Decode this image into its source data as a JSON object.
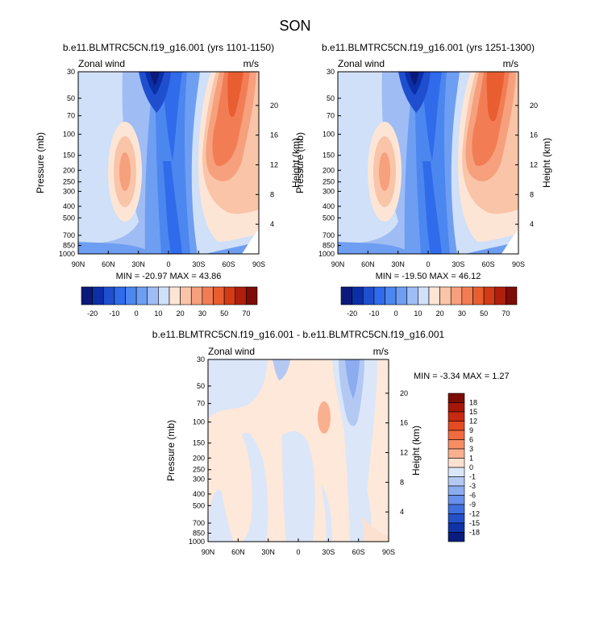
{
  "page_title": "SON",
  "chart_data": [
    {
      "type": "contour",
      "title": "b.e11.BLMTRC5CN.f19_g16.001 (yrs 1101-1150)",
      "left_label": "Zonal wind",
      "right_label": "m/s",
      "ylabel": "Pressure (mb)",
      "ylabel_right": "Height (km)",
      "x_ticks": [
        "90N",
        "60N",
        "30N",
        "0",
        "30S",
        "60S",
        "90S"
      ],
      "y_ticks": [
        "30",
        "50",
        "70",
        "100",
        "150",
        "200",
        "250",
        "300",
        "400",
        "500",
        "700",
        "850",
        "1000"
      ],
      "height_ticks": [
        "20",
        "16",
        "12",
        "8",
        "4"
      ],
      "min_max": "MIN = -20.97  MAX =  43.86",
      "colorbar_labels": [
        "-20",
        "-10",
        "0",
        "10",
        "20",
        "30",
        "50",
        "70"
      ],
      "colorbar_colors": [
        "#0b1a7a",
        "#0b2fa8",
        "#1f4fcf",
        "#2f6bea",
        "#4c86ef",
        "#6e9ef2",
        "#9fbcf4",
        "#cfe0f8",
        "#fde5d6",
        "#f9c4a7",
        "#f6a07d",
        "#f27d55",
        "#e85e31",
        "#d23b16",
        "#b01f0c",
        "#7d0c06"
      ],
      "min_value": -20.97,
      "max_value": 43.86
    },
    {
      "type": "contour",
      "title": "b.e11.BLMTRC5CN.f19_g16.001 (yrs 1251-1300)",
      "left_label": "Zonal wind",
      "right_label": "m/s",
      "ylabel": "Pressure (mb)",
      "ylabel_right": "Height (km)",
      "x_ticks": [
        "90N",
        "60N",
        "30N",
        "0",
        "30S",
        "60S",
        "90S"
      ],
      "y_ticks": [
        "30",
        "50",
        "70",
        "100",
        "150",
        "200",
        "250",
        "300",
        "400",
        "500",
        "700",
        "850",
        "1000"
      ],
      "height_ticks": [
        "20",
        "16",
        "12",
        "8",
        "4"
      ],
      "min_max": "MIN = -19.50  MAX =  46.12",
      "colorbar_labels": [
        "-20",
        "-10",
        "0",
        "10",
        "20",
        "30",
        "50",
        "70"
      ],
      "colorbar_colors": [
        "#0b1a7a",
        "#0b2fa8",
        "#1f4fcf",
        "#2f6bea",
        "#4c86ef",
        "#6e9ef2",
        "#9fbcf4",
        "#cfe0f8",
        "#fde5d6",
        "#f9c4a7",
        "#f6a07d",
        "#f27d55",
        "#e85e31",
        "#d23b16",
        "#b01f0c",
        "#7d0c06"
      ],
      "min_value": -19.5,
      "max_value": 46.12
    },
    {
      "type": "contour",
      "title": "b.e11.BLMTRC5CN.f19_g16.001 - b.e11.BLMTRC5CN.f19_g16.001",
      "left_label": "Zonal wind",
      "right_label": "m/s",
      "ylabel": "Pressure (mb)",
      "ylabel_right": "Height (km)",
      "x_ticks": [
        "90N",
        "60N",
        "30N",
        "0",
        "30S",
        "60S",
        "90S"
      ],
      "y_ticks": [
        "30",
        "50",
        "70",
        "100",
        "150",
        "200",
        "250",
        "300",
        "400",
        "500",
        "700",
        "850",
        "1000"
      ],
      "height_ticks": [
        "20",
        "16",
        "12",
        "8",
        "4"
      ],
      "min_max": "MIN = -3.34  MAX =  1.27",
      "colorbar_labels": [
        "18",
        "15",
        "12",
        "9",
        "6",
        "3",
        "1",
        "0",
        "-1",
        "-3",
        "-6",
        "-9",
        "-12",
        "-15",
        "-18"
      ],
      "colorbar_colors": [
        "#7d0c06",
        "#a5170a",
        "#c72a10",
        "#e54a22",
        "#f26a3f",
        "#f68d63",
        "#f9b08f",
        "#fde1d0",
        "#dbe6f8",
        "#b3c9f3",
        "#8cacf0",
        "#6790ea",
        "#3f6fde",
        "#2450c8",
        "#0f34a8",
        "#0a1d7e"
      ],
      "min_value": -3.34,
      "max_value": 1.27
    }
  ]
}
